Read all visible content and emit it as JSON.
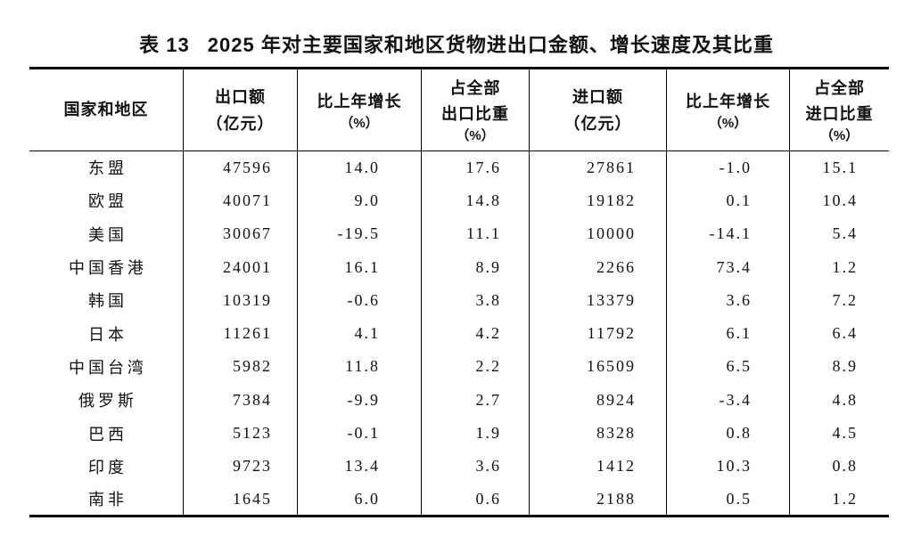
{
  "table": {
    "label": "表 13",
    "title": "2025 年对主要国家和地区货物进出口金额、增长速度及其比重",
    "columns": [
      {
        "id": "region",
        "lines": [
          "国家和地区"
        ]
      },
      {
        "id": "export_value",
        "lines": [
          "出口额",
          "（亿元）"
        ]
      },
      {
        "id": "export_growth",
        "lines": [
          "比上年增长",
          "（%）"
        ]
      },
      {
        "id": "export_share",
        "lines": [
          "占全部",
          "出口比重",
          "（%）"
        ]
      },
      {
        "id": "import_value",
        "lines": [
          "进口额",
          "（亿元）"
        ]
      },
      {
        "id": "import_growth",
        "lines": [
          "比上年增长",
          "（%）"
        ]
      },
      {
        "id": "import_share",
        "lines": [
          "占全部",
          "进口比重",
          "（%）"
        ]
      }
    ],
    "rows": [
      {
        "region": "东盟",
        "export_value": "47596",
        "export_growth": "14.0",
        "export_share": "17.6",
        "import_value": "27861",
        "import_growth": "-1.0",
        "import_share": "15.1"
      },
      {
        "region": "欧盟",
        "export_value": "40071",
        "export_growth": "9.0",
        "export_share": "14.8",
        "import_value": "19182",
        "import_growth": "0.1",
        "import_share": "10.4"
      },
      {
        "region": "美国",
        "export_value": "30067",
        "export_growth": "-19.5",
        "export_share": "11.1",
        "import_value": "10000",
        "import_growth": "-14.1",
        "import_share": "5.4"
      },
      {
        "region": "中国香港",
        "export_value": "24001",
        "export_growth": "16.1",
        "export_share": "8.9",
        "import_value": "2266",
        "import_growth": "73.4",
        "import_share": "1.2"
      },
      {
        "region": "韩国",
        "export_value": "10319",
        "export_growth": "-0.6",
        "export_share": "3.8",
        "import_value": "13379",
        "import_growth": "3.6",
        "import_share": "7.2"
      },
      {
        "region": "日本",
        "export_value": "11261",
        "export_growth": "4.1",
        "export_share": "4.2",
        "import_value": "11792",
        "import_growth": "6.1",
        "import_share": "6.4"
      },
      {
        "region": "中国台湾",
        "export_value": "5982",
        "export_growth": "11.8",
        "export_share": "2.2",
        "import_value": "16509",
        "import_growth": "6.5",
        "import_share": "8.9"
      },
      {
        "region": "俄罗斯",
        "export_value": "7384",
        "export_growth": "-9.9",
        "export_share": "2.7",
        "import_value": "8924",
        "import_growth": "-3.4",
        "import_share": "4.8"
      },
      {
        "region": "巴西",
        "export_value": "5123",
        "export_growth": "-0.1",
        "export_share": "1.9",
        "import_value": "8328",
        "import_growth": "0.8",
        "import_share": "4.5"
      },
      {
        "region": "印度",
        "export_value": "9723",
        "export_growth": "13.4",
        "export_share": "3.6",
        "import_value": "1412",
        "import_growth": "10.3",
        "import_share": "0.8"
      },
      {
        "region": "南非",
        "export_value": "1645",
        "export_growth": "6.0",
        "export_share": "0.6",
        "import_value": "2188",
        "import_growth": "0.5",
        "import_share": "1.2"
      }
    ]
  }
}
